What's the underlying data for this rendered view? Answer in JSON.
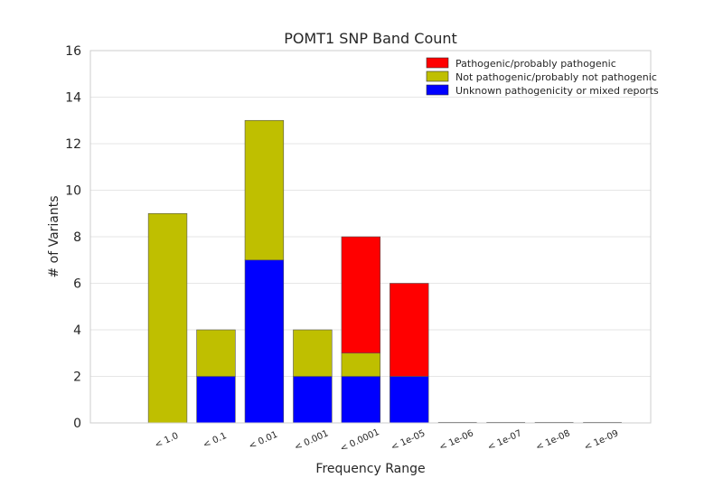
{
  "chart_data": {
    "type": "bar",
    "stacked": true,
    "title": "POMT1 SNP Band Count",
    "xlabel": "Frequency Range",
    "ylabel": "# of Variants",
    "ylim": [
      0,
      16
    ],
    "yticks": [
      0,
      2,
      4,
      6,
      8,
      10,
      12,
      14,
      16
    ],
    "grid": "horizontal",
    "legend_position": "top-right",
    "categories": [
      "< 1.0",
      "< 0.1",
      "< 0.01",
      "< 0.001",
      "< 0.0001",
      "< 1e-05",
      "< 1e-06",
      "< 1e-07",
      "< 1e-08",
      "< 1e-09"
    ],
    "series": [
      {
        "name": "Unknown pathogenicity or mixed reports",
        "color": "#0000ff",
        "values": [
          0,
          2,
          7,
          2,
          2,
          2,
          0,
          0,
          0,
          0
        ]
      },
      {
        "name": "Not pathogenic/probably not pathogenic",
        "color": "#bfbf00",
        "values": [
          9,
          2,
          6,
          2,
          1,
          0,
          0,
          0,
          0,
          0
        ]
      },
      {
        "name": "Pathogenic/probably pathogenic",
        "color": "#ff0000",
        "values": [
          0,
          0,
          0,
          0,
          5,
          4,
          0,
          0,
          0,
          0
        ]
      }
    ],
    "legend_order": [
      "Pathogenic/probably pathogenic",
      "Not pathogenic/probably not pathogenic",
      "Unknown pathogenicity or mixed reports"
    ]
  }
}
